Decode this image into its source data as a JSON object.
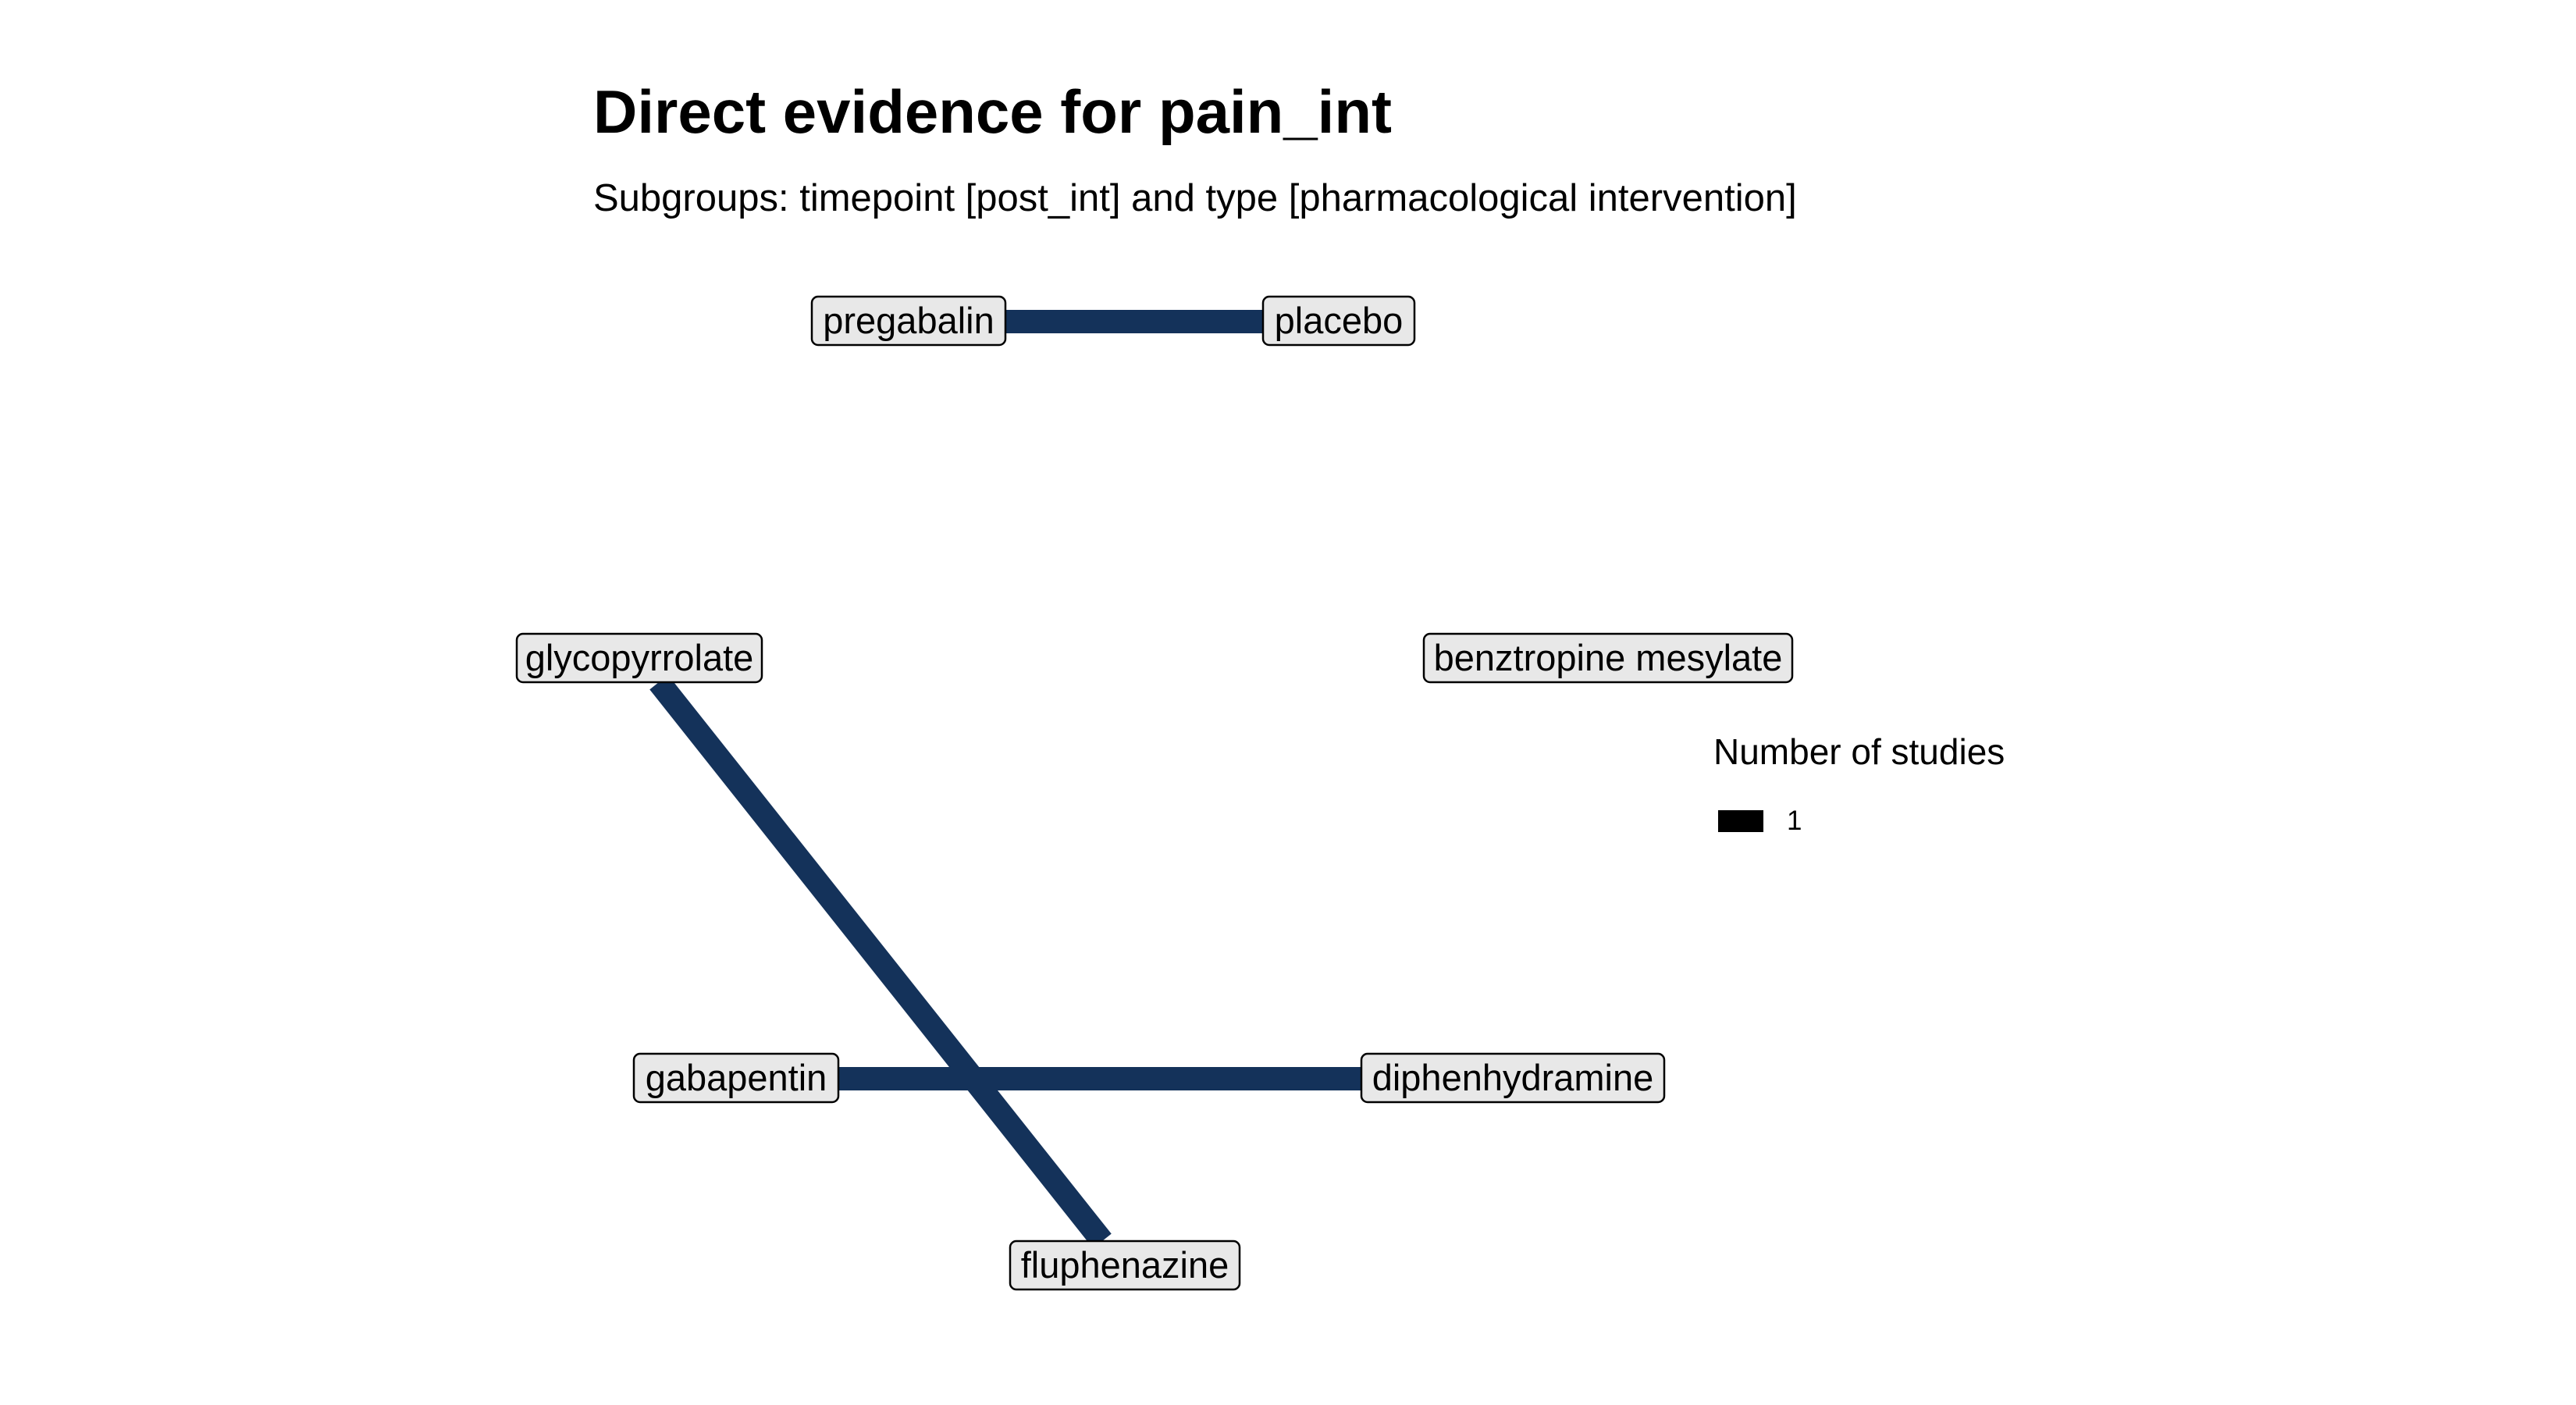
{
  "title": "Direct evidence for pain_int",
  "subtitle": "Subgroups: timepoint [post_int] and type [pharmacological intervention]",
  "colors": {
    "edge": "#14325a",
    "node_fill": "#e8e8e8",
    "node_border": "#000000",
    "legend_key": "#000000"
  },
  "network": {
    "nodes": [
      {
        "id": "pregabalin",
        "label": "pregabalin"
      },
      {
        "id": "placebo",
        "label": "placebo"
      },
      {
        "id": "glycopyrrolate",
        "label": "glycopyrrolate"
      },
      {
        "id": "benztropine",
        "label": "benztropine mesylate"
      },
      {
        "id": "gabapentin",
        "label": "gabapentin"
      },
      {
        "id": "diphenhydramine",
        "label": "diphenhydramine"
      },
      {
        "id": "fluphenazine",
        "label": "fluphenazine"
      }
    ],
    "edges": [
      {
        "from": "pregabalin",
        "to": "placebo",
        "studies": 1
      },
      {
        "from": "glycopyrrolate",
        "to": "fluphenazine",
        "studies": 1
      },
      {
        "from": "gabapentin",
        "to": "diphenhydramine",
        "studies": 1
      }
    ]
  },
  "legend": {
    "title": "Number of studies",
    "items": [
      {
        "label": "1"
      }
    ]
  }
}
